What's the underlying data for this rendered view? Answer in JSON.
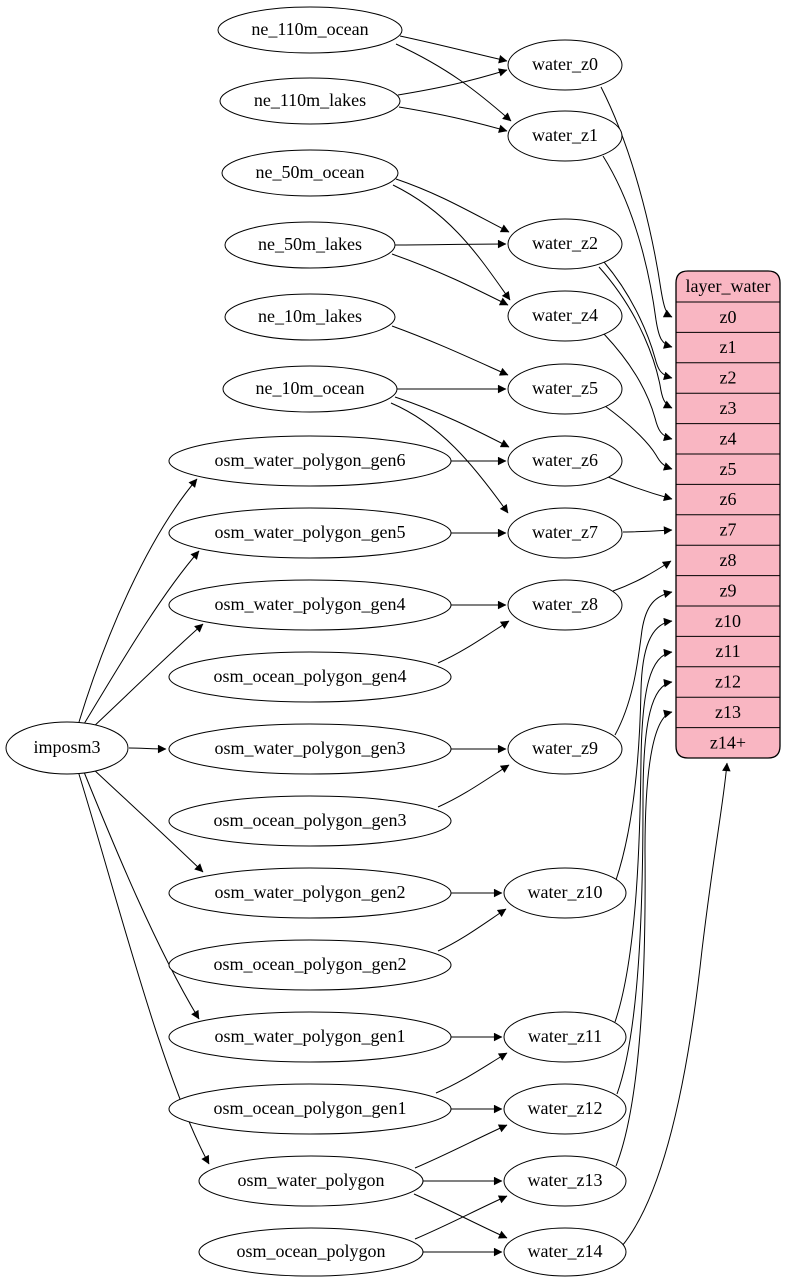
{
  "diagram": {
    "type": "etl-graph",
    "colors": {
      "background": "#ffffff",
      "node_fill": "#ffffff",
      "node_stroke": "#000000",
      "edge_color": "#000000",
      "record_fill": "#f9b6c2",
      "record_stroke": "#000000",
      "text_color": "#000000"
    },
    "nodes": [
      {
        "id": "imposm3",
        "label": "imposm3"
      },
      {
        "id": "ne_110m_ocean",
        "label": "ne_110m_ocean"
      },
      {
        "id": "ne_110m_lakes",
        "label": "ne_110m_lakes"
      },
      {
        "id": "ne_50m_ocean",
        "label": "ne_50m_ocean"
      },
      {
        "id": "ne_50m_lakes",
        "label": "ne_50m_lakes"
      },
      {
        "id": "ne_10m_lakes",
        "label": "ne_10m_lakes"
      },
      {
        "id": "ne_10m_ocean",
        "label": "ne_10m_ocean"
      },
      {
        "id": "osm_water_polygon_gen6",
        "label": "osm_water_polygon_gen6"
      },
      {
        "id": "osm_water_polygon_gen5",
        "label": "osm_water_polygon_gen5"
      },
      {
        "id": "osm_water_polygon_gen4",
        "label": "osm_water_polygon_gen4"
      },
      {
        "id": "osm_ocean_polygon_gen4",
        "label": "osm_ocean_polygon_gen4"
      },
      {
        "id": "osm_water_polygon_gen3",
        "label": "osm_water_polygon_gen3"
      },
      {
        "id": "osm_ocean_polygon_gen3",
        "label": "osm_ocean_polygon_gen3"
      },
      {
        "id": "osm_water_polygon_gen2",
        "label": "osm_water_polygon_gen2"
      },
      {
        "id": "osm_ocean_polygon_gen2",
        "label": "osm_ocean_polygon_gen2"
      },
      {
        "id": "osm_water_polygon_gen1",
        "label": "osm_water_polygon_gen1"
      },
      {
        "id": "osm_ocean_polygon_gen1",
        "label": "osm_ocean_polygon_gen1"
      },
      {
        "id": "osm_water_polygon",
        "label": "osm_water_polygon"
      },
      {
        "id": "osm_ocean_polygon",
        "label": "osm_ocean_polygon"
      },
      {
        "id": "water_z0",
        "label": "water_z0"
      },
      {
        "id": "water_z1",
        "label": "water_z1"
      },
      {
        "id": "water_z2",
        "label": "water_z2"
      },
      {
        "id": "water_z4",
        "label": "water_z4"
      },
      {
        "id": "water_z5",
        "label": "water_z5"
      },
      {
        "id": "water_z6",
        "label": "water_z6"
      },
      {
        "id": "water_z7",
        "label": "water_z7"
      },
      {
        "id": "water_z8",
        "label": "water_z8"
      },
      {
        "id": "water_z9",
        "label": "water_z9"
      },
      {
        "id": "water_z10",
        "label": "water_z10"
      },
      {
        "id": "water_z11",
        "label": "water_z11"
      },
      {
        "id": "water_z12",
        "label": "water_z12"
      },
      {
        "id": "water_z13",
        "label": "water_z13"
      },
      {
        "id": "water_z14",
        "label": "water_z14"
      }
    ],
    "record": {
      "id": "layer_water",
      "title": "layer_water",
      "rows": [
        "z0",
        "z1",
        "z2",
        "z3",
        "z4",
        "z5",
        "z6",
        "z7",
        "z8",
        "z9",
        "z10",
        "z11",
        "z12",
        "z13",
        "z14+"
      ]
    },
    "edges": [
      {
        "from": "ne_110m_ocean",
        "to": "water_z0"
      },
      {
        "from": "ne_110m_ocean",
        "to": "water_z1"
      },
      {
        "from": "ne_110m_lakes",
        "to": "water_z0"
      },
      {
        "from": "ne_110m_lakes",
        "to": "water_z1"
      },
      {
        "from": "ne_50m_ocean",
        "to": "water_z2"
      },
      {
        "from": "ne_50m_ocean",
        "to": "water_z4"
      },
      {
        "from": "ne_50m_lakes",
        "to": "water_z2"
      },
      {
        "from": "ne_50m_lakes",
        "to": "water_z4"
      },
      {
        "from": "ne_10m_lakes",
        "to": "water_z5"
      },
      {
        "from": "ne_10m_ocean",
        "to": "water_z5"
      },
      {
        "from": "ne_10m_ocean",
        "to": "water_z6"
      },
      {
        "from": "ne_10m_ocean",
        "to": "water_z7"
      },
      {
        "from": "osm_water_polygon_gen6",
        "to": "water_z6"
      },
      {
        "from": "osm_water_polygon_gen5",
        "to": "water_z7"
      },
      {
        "from": "osm_water_polygon_gen4",
        "to": "water_z8"
      },
      {
        "from": "osm_ocean_polygon_gen4",
        "to": "water_z8"
      },
      {
        "from": "osm_water_polygon_gen3",
        "to": "water_z9"
      },
      {
        "from": "osm_ocean_polygon_gen3",
        "to": "water_z9"
      },
      {
        "from": "osm_water_polygon_gen2",
        "to": "water_z10"
      },
      {
        "from": "osm_ocean_polygon_gen2",
        "to": "water_z10"
      },
      {
        "from": "osm_water_polygon_gen1",
        "to": "water_z11"
      },
      {
        "from": "osm_ocean_polygon_gen1",
        "to": "water_z11"
      },
      {
        "from": "osm_ocean_polygon_gen1",
        "to": "water_z12"
      },
      {
        "from": "osm_water_polygon",
        "to": "water_z12"
      },
      {
        "from": "osm_water_polygon",
        "to": "water_z13"
      },
      {
        "from": "osm_water_polygon",
        "to": "water_z14"
      },
      {
        "from": "osm_ocean_polygon",
        "to": "water_z13"
      },
      {
        "from": "osm_ocean_polygon",
        "to": "water_z14"
      },
      {
        "from": "imposm3",
        "to": "osm_water_polygon_gen6"
      },
      {
        "from": "imposm3",
        "to": "osm_water_polygon_gen5"
      },
      {
        "from": "imposm3",
        "to": "osm_water_polygon_gen4"
      },
      {
        "from": "imposm3",
        "to": "osm_water_polygon_gen3"
      },
      {
        "from": "imposm3",
        "to": "osm_water_polygon_gen2"
      },
      {
        "from": "imposm3",
        "to": "osm_water_polygon_gen1"
      },
      {
        "from": "imposm3",
        "to": "osm_water_polygon"
      },
      {
        "from": "water_z0",
        "to": "layer_water:z0"
      },
      {
        "from": "water_z1",
        "to": "layer_water:z1"
      },
      {
        "from": "water_z2",
        "to": "layer_water:z2"
      },
      {
        "from": "water_z2",
        "to": "layer_water:z3"
      },
      {
        "from": "water_z4",
        "to": "layer_water:z4"
      },
      {
        "from": "water_z5",
        "to": "layer_water:z5"
      },
      {
        "from": "water_z6",
        "to": "layer_water:z6"
      },
      {
        "from": "water_z7",
        "to": "layer_water:z7"
      },
      {
        "from": "water_z8",
        "to": "layer_water:z8"
      },
      {
        "from": "water_z9",
        "to": "layer_water:z9"
      },
      {
        "from": "water_z10",
        "to": "layer_water:z10"
      },
      {
        "from": "water_z11",
        "to": "layer_water:z11"
      },
      {
        "from": "water_z12",
        "to": "layer_water:z12"
      },
      {
        "from": "water_z13",
        "to": "layer_water:z13"
      },
      {
        "from": "water_z14",
        "to": "layer_water:z14+"
      }
    ]
  }
}
